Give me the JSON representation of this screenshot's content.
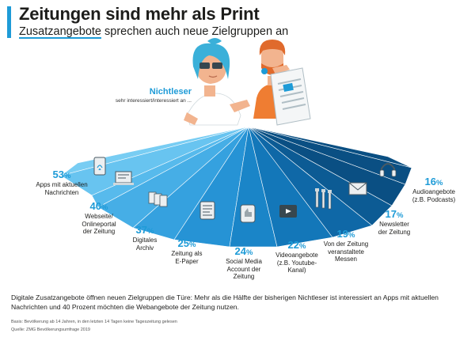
{
  "title": "Zeitungen sind mehr als Print",
  "subtitle_highlight": "Zusatzangebote",
  "subtitle_rest": " sprechen auch neue Zielgruppen an",
  "nichtleser_title": "Nichtleser",
  "nichtleser_sub": "sehr interessiert/interessiert an ...",
  "body_text": "Digitale Zusatzangebote öffnen neuen Zielgruppen die Türe: Mehr als die Hälfte der bisherigen Nichtleser ist interessiert an Apps mit aktuellen Nachrichten und 40 Prozent möchten die Webangebote der Zeitung nutzen.",
  "footnote_basis": "Basis: Bevölkerung ab 14 Jahren, in den letzten 14 Tagen keine Tageszeitung gelesen",
  "footnote_source": "Quelle: ZMG Bevölkerungsumfrage 2019",
  "colors": {
    "accent": "#1e9bd7",
    "text": "#1d1d1b",
    "segments": [
      "#78cdf3",
      "#68c4f0",
      "#57baec",
      "#46aee6",
      "#35a1df",
      "#2693d5",
      "#1a85c8",
      "#1377b9",
      "#0f68a7",
      "#0c5b94",
      "#0a4f83"
    ]
  },
  "chart_data": {
    "type": "bar",
    "title": "Zeitungen sind mehr als Print",
    "subtitle": "Zusatzangebote sprechen auch neue Zielgruppen an",
    "series_name": "Nichtleser – sehr interessiert/interessiert an ...",
    "unit": "%",
    "categories": [
      "Apps mit aktuellen Nachrichten",
      "Webseite/ Onlineportal der Zeitung",
      "Digitales Archiv",
      "Zeitung als E-Paper",
      "Social Media Account der Zeitung",
      "Videoangebote (z.B. Youtube-Kanal)",
      "Von der Zeitung veranstaltete Messen",
      "Newsletter der Zeitung",
      "Audioangebote (z.B. Podcasts)"
    ],
    "values": [
      53,
      40,
      37,
      25,
      24,
      22,
      19,
      17,
      16
    ],
    "items": [
      {
        "pct": "53",
        "lines": [
          "Apps mit aktuellen",
          "Nachrichten"
        ],
        "icon": "app-smartphone-icon"
      },
      {
        "pct": "40",
        "lines": [
          "Webseite/",
          "Onlineportal",
          "der Zeitung"
        ],
        "icon": "website-laptop-icon"
      },
      {
        "pct": "37",
        "lines": [
          "Digitales",
          "Archiv"
        ],
        "icon": "archive-folders-icon"
      },
      {
        "pct": "25",
        "lines": [
          "Zeitung als",
          "E-Paper"
        ],
        "icon": "epaper-tablet-icon"
      },
      {
        "pct": "24",
        "lines": [
          "Social Media",
          "Account der",
          "Zeitung"
        ],
        "icon": "social-media-like-icon"
      },
      {
        "pct": "22",
        "lines": [
          "Videoangebote",
          "(z.B. Youtube-",
          "Kanal)"
        ],
        "icon": "video-play-icon"
      },
      {
        "pct": "19",
        "lines": [
          "Von der Zeitung",
          "veranstaltete",
          "Messen"
        ],
        "icon": "event-stands-icon"
      },
      {
        "pct": "17",
        "lines": [
          "Newsletter",
          "der Zeitung"
        ],
        "icon": "newsletter-envelope-icon"
      },
      {
        "pct": "16",
        "lines": [
          "Audioangebote",
          "(z.B. Podcasts)"
        ],
        "icon": "audio-headphones-icon"
      }
    ]
  }
}
